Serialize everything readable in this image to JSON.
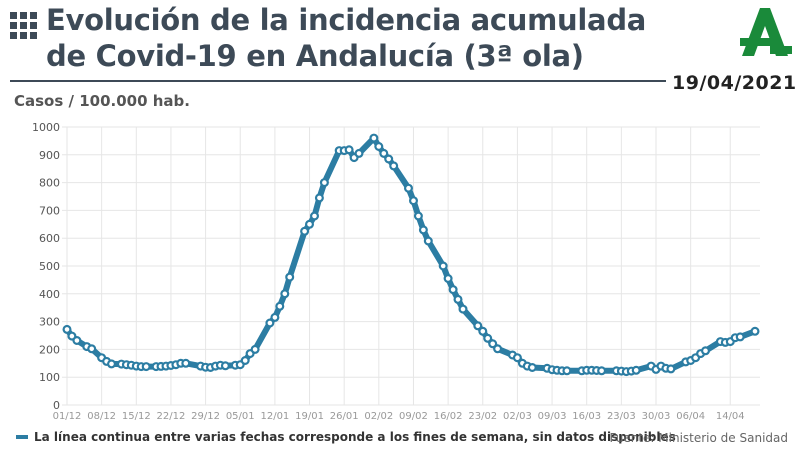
{
  "header": {
    "title": "Evolución de la incidencia acumulada\nde Covid-19 en Andalucía (3ª ola)",
    "date": "19/04/2021",
    "logo_icon": "junta-andalucia-logo-icon",
    "grid_icon": "grid-icon",
    "accent_color": "#1a8a3a",
    "text_color": "#3d4a57"
  },
  "footer": {
    "note": "La línea continua entre varias fechas corresponde a los fines de semana, sin datos disponibles",
    "source": "Fuente: Ministerio de Sanidad"
  },
  "chart_data": {
    "type": "line",
    "ylabel": "Casos / 100.000 hab.",
    "ylim": [
      0,
      1000
    ],
    "yticks": [
      0,
      100,
      200,
      300,
      400,
      500,
      600,
      700,
      800,
      900,
      1000
    ],
    "xlim": [
      "2020-12-01",
      "2021-04-19"
    ],
    "xticks": [
      "01/12",
      "08/12",
      "15/12",
      "22/12",
      "29/12",
      "05/01",
      "12/01",
      "19/01",
      "26/01",
      "02/02",
      "09/02",
      "16/02",
      "23/02",
      "02/03",
      "09/03",
      "16/03",
      "23/03",
      "30/03",
      "06/04",
      "14/04"
    ],
    "xtick_dates": [
      "2020-12-01",
      "2020-12-08",
      "2020-12-15",
      "2020-12-22",
      "2020-12-29",
      "2021-01-05",
      "2021-01-12",
      "2021-01-19",
      "2021-01-26",
      "2021-02-02",
      "2021-02-09",
      "2021-02-16",
      "2021-02-23",
      "2021-03-02",
      "2021-03-09",
      "2021-03-16",
      "2021-03-23",
      "2021-03-30",
      "2021-04-06",
      "2021-04-14"
    ],
    "grid": true,
    "line_color": "#2c7da3",
    "series": [
      {
        "points": [
          [
            "2020-12-01",
            272
          ],
          [
            "2020-12-02",
            248
          ],
          [
            "2020-12-03",
            232
          ],
          [
            "2020-12-05",
            210
          ],
          [
            "2020-12-06",
            202
          ],
          [
            "2020-12-08",
            170
          ],
          [
            "2020-12-09",
            157
          ],
          [
            "2020-12-10",
            148
          ],
          [
            "2020-12-12",
            147
          ],
          [
            "2020-12-13",
            145
          ],
          [
            "2020-12-14",
            143
          ],
          [
            "2020-12-15",
            140
          ],
          [
            "2020-12-16",
            138
          ],
          [
            "2020-12-17",
            138
          ],
          [
            "2020-12-19",
            138
          ],
          [
            "2020-12-20",
            139
          ],
          [
            "2020-12-21",
            140
          ],
          [
            "2020-12-22",
            142
          ],
          [
            "2020-12-23",
            145
          ],
          [
            "2020-12-24",
            150
          ],
          [
            "2020-12-25",
            150
          ],
          [
            "2020-12-28",
            140
          ],
          [
            "2020-12-29",
            136
          ],
          [
            "2020-12-30",
            135
          ],
          [
            "2020-12-31",
            140
          ],
          [
            "2021-01-01",
            143
          ],
          [
            "2021-01-02",
            141
          ],
          [
            "2021-01-04",
            143
          ],
          [
            "2021-01-05",
            145
          ],
          [
            "2021-01-06",
            160
          ],
          [
            "2021-01-07",
            185
          ],
          [
            "2021-01-08",
            200
          ],
          [
            "2021-01-11",
            295
          ],
          [
            "2021-01-12",
            315
          ],
          [
            "2021-01-13",
            355
          ],
          [
            "2021-01-14",
            400
          ],
          [
            "2021-01-15",
            460
          ],
          [
            "2021-01-18",
            625
          ],
          [
            "2021-01-19",
            650
          ],
          [
            "2021-01-20",
            680
          ],
          [
            "2021-01-21",
            745
          ],
          [
            "2021-01-22",
            800
          ],
          [
            "2021-01-25",
            915
          ],
          [
            "2021-01-26",
            915
          ],
          [
            "2021-01-27",
            918
          ],
          [
            "2021-01-28",
            890
          ],
          [
            "2021-01-29",
            905
          ],
          [
            "2021-02-01",
            960
          ],
          [
            "2021-02-02",
            930
          ],
          [
            "2021-02-03",
            905
          ],
          [
            "2021-02-04",
            885
          ],
          [
            "2021-02-05",
            860
          ],
          [
            "2021-02-08",
            780
          ],
          [
            "2021-02-09",
            735
          ],
          [
            "2021-02-10",
            680
          ],
          [
            "2021-02-11",
            630
          ],
          [
            "2021-02-12",
            590
          ],
          [
            "2021-02-15",
            500
          ],
          [
            "2021-02-16",
            455
          ],
          [
            "2021-02-17",
            415
          ],
          [
            "2021-02-18",
            380
          ],
          [
            "2021-02-19",
            345
          ],
          [
            "2021-02-22",
            285
          ],
          [
            "2021-02-23",
            265
          ],
          [
            "2021-02-24",
            240
          ],
          [
            "2021-02-25",
            220
          ],
          [
            "2021-02-26",
            202
          ],
          [
            "2021-03-01",
            180
          ],
          [
            "2021-03-02",
            170
          ],
          [
            "2021-03-03",
            150
          ],
          [
            "2021-03-04",
            140
          ],
          [
            "2021-03-05",
            135
          ],
          [
            "2021-03-08",
            132
          ],
          [
            "2021-03-09",
            127
          ],
          [
            "2021-03-10",
            125
          ],
          [
            "2021-03-11",
            123
          ],
          [
            "2021-03-12",
            123
          ],
          [
            "2021-03-15",
            123
          ],
          [
            "2021-03-16",
            125
          ],
          [
            "2021-03-17",
            125
          ],
          [
            "2021-03-18",
            124
          ],
          [
            "2021-03-19",
            123
          ],
          [
            "2021-03-22",
            123
          ],
          [
            "2021-03-23",
            122
          ],
          [
            "2021-03-24",
            120
          ],
          [
            "2021-03-25",
            122
          ],
          [
            "2021-03-26",
            125
          ],
          [
            "2021-03-29",
            140
          ],
          [
            "2021-03-30",
            128
          ],
          [
            "2021-03-31",
            140
          ],
          [
            "2021-04-01",
            132
          ],
          [
            "2021-04-02",
            130
          ],
          [
            "2021-04-05",
            155
          ],
          [
            "2021-04-06",
            160
          ],
          [
            "2021-04-07",
            170
          ],
          [
            "2021-04-08",
            185
          ],
          [
            "2021-04-09",
            195
          ],
          [
            "2021-04-12",
            228
          ],
          [
            "2021-04-13",
            225
          ],
          [
            "2021-04-14",
            228
          ],
          [
            "2021-04-15",
            242
          ],
          [
            "2021-04-16",
            245
          ],
          [
            "2021-04-19",
            265
          ]
        ]
      }
    ]
  }
}
